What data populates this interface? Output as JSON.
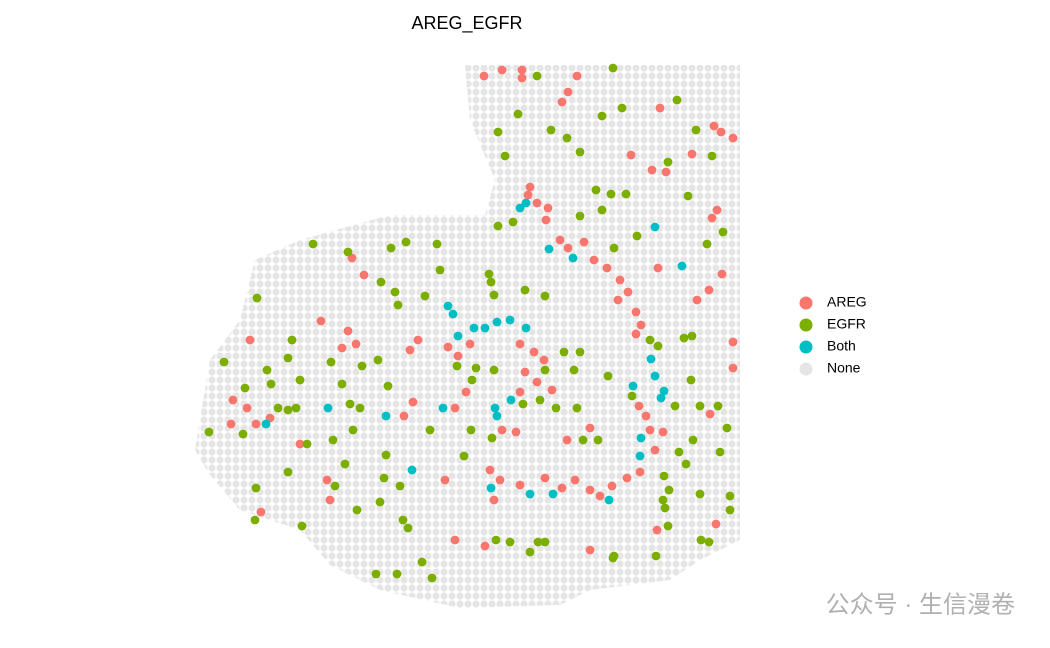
{
  "chart_data": {
    "type": "scatter",
    "title": "AREG_EGFR",
    "xlim": [
      195,
      740
    ],
    "ylim": [
      605,
      60
    ],
    "series": [
      {
        "name": "AREG",
        "color": "#F8766D",
        "x": [
          484,
          502,
          522,
          522,
          577,
          568,
          562,
          660,
          714,
          721,
          733,
          631,
          692,
          652,
          666,
          530,
          528,
          537,
          548,
          546,
          560,
          568,
          584,
          594,
          607,
          620,
          628,
          618,
          636,
          641,
          636,
          658,
          717,
          712,
          722,
          709,
          697,
          352,
          364,
          321,
          348,
          356,
          342,
          418,
          410,
          448,
          458,
          470,
          520,
          534,
          544,
          525,
          537,
          520,
          552,
          466,
          455,
          502,
          516,
          490,
          500,
          520,
          545,
          562,
          575,
          590,
          600,
          612,
          627,
          640,
          445,
          233,
          247,
          256,
          270,
          250,
          231,
          300,
          327,
          330,
          261,
          455,
          485,
          494,
          590,
          657,
          716,
          733,
          733,
          710,
          639,
          646,
          650,
          655,
          663,
          590,
          567,
          404,
          413
        ],
        "y": [
          76,
          70,
          70,
          78,
          76,
          92,
          102,
          108,
          126,
          132,
          138,
          155,
          154,
          170,
          172,
          187,
          195,
          203,
          208,
          220,
          240,
          248,
          242,
          260,
          268,
          280,
          292,
          300,
          312,
          325,
          334,
          268,
          210,
          218,
          274,
          290,
          300,
          258,
          275,
          321,
          331,
          344,
          348,
          340,
          350,
          347,
          356,
          344,
          344,
          352,
          360,
          372,
          382,
          392,
          390,
          392,
          408,
          430,
          432,
          470,
          480,
          485,
          478,
          488,
          480,
          490,
          496,
          486,
          478,
          472,
          480,
          400,
          408,
          424,
          418,
          340,
          424,
          444,
          480,
          500,
          512,
          540,
          546,
          500,
          550,
          530,
          524,
          368,
          342,
          414,
          406,
          416,
          430,
          450,
          432,
          428,
          440,
          416,
          402
        ]
      },
      {
        "name": "EGFR",
        "color": "#7CAE00",
        "x": [
          537,
          613,
          518,
          498,
          505,
          551,
          567,
          580,
          622,
          602,
          677,
          696,
          712,
          668,
          596,
          611,
          626,
          602,
          580,
          513,
          498,
          688,
          723,
          707,
          637,
          614,
          313,
          348,
          391,
          406,
          437,
          440,
          381,
          395,
          398,
          425,
          489,
          491,
          494,
          525,
          545,
          257,
          292,
          288,
          300,
          267,
          271,
          245,
          224,
          209,
          243,
          278,
          288,
          296,
          307,
          333,
          353,
          350,
          360,
          331,
          342,
          362,
          378,
          388,
          457,
          476,
          472,
          494,
          545,
          564,
          580,
          574,
          608,
          632,
          684,
          692,
          691,
          675,
          700,
          718,
          727,
          693,
          679,
          650,
          658,
          720,
          686,
          664,
          669,
          665,
          700,
          730,
          730,
          701,
          709,
          668,
          656,
          538,
          545,
          530,
          510,
          496,
          614,
          403,
          408,
          422,
          432,
          376,
          397,
          357,
          380,
          384,
          400,
          256,
          255,
          288,
          302,
          335,
          345,
          386,
          464,
          492,
          471,
          430,
          523,
          540,
          556,
          577,
          583,
          598,
          663,
          613
        ],
        "y": [
          76,
          68,
          114,
          132,
          156,
          130,
          138,
          152,
          108,
          116,
          100,
          130,
          156,
          162,
          190,
          194,
          194,
          210,
          216,
          222,
          226,
          196,
          232,
          244,
          236,
          248,
          244,
          252,
          248,
          242,
          244,
          270,
          282,
          292,
          305,
          296,
          274,
          282,
          295,
          290,
          296,
          298,
          340,
          358,
          380,
          370,
          384,
          388,
          362,
          432,
          434,
          408,
          410,
          408,
          444,
          440,
          430,
          404,
          408,
          362,
          384,
          366,
          360,
          386,
          366,
          368,
          380,
          370,
          370,
          352,
          352,
          370,
          376,
          396,
          338,
          336,
          380,
          406,
          406,
          406,
          428,
          440,
          452,
          340,
          346,
          452,
          464,
          476,
          490,
          508,
          494,
          496,
          510,
          540,
          542,
          526,
          556,
          542,
          542,
          552,
          542,
          540,
          556,
          520,
          528,
          562,
          578,
          574,
          574,
          510,
          502,
          478,
          486,
          488,
          520,
          472,
          526,
          486,
          464,
          455,
          456,
          438,
          430,
          430,
          404,
          400,
          408,
          408,
          440,
          440,
          500,
          558
        ]
      },
      {
        "name": "Both",
        "color": "#00BFC4",
        "x": [
          520,
          526,
          549,
          573,
          655,
          682,
          448,
          453,
          458,
          474,
          485,
          497,
          510,
          526,
          651,
          655,
          633,
          661,
          664,
          328,
          386,
          443,
          495,
          511,
          497,
          266,
          641,
          640,
          412,
          491,
          553,
          609,
          530
        ],
        "y": [
          208,
          203,
          249,
          258,
          227,
          266,
          306,
          314,
          336,
          328,
          328,
          322,
          320,
          328,
          359,
          376,
          386,
          398,
          391,
          408,
          416,
          408,
          408,
          400,
          416,
          424,
          438,
          456,
          470,
          488,
          494,
          500,
          494
        ]
      },
      {
        "name": "None",
        "color": "#E5E5E5",
        "x": [],
        "y": []
      }
    ],
    "watermark": "公众号 · 生信漫卷"
  }
}
